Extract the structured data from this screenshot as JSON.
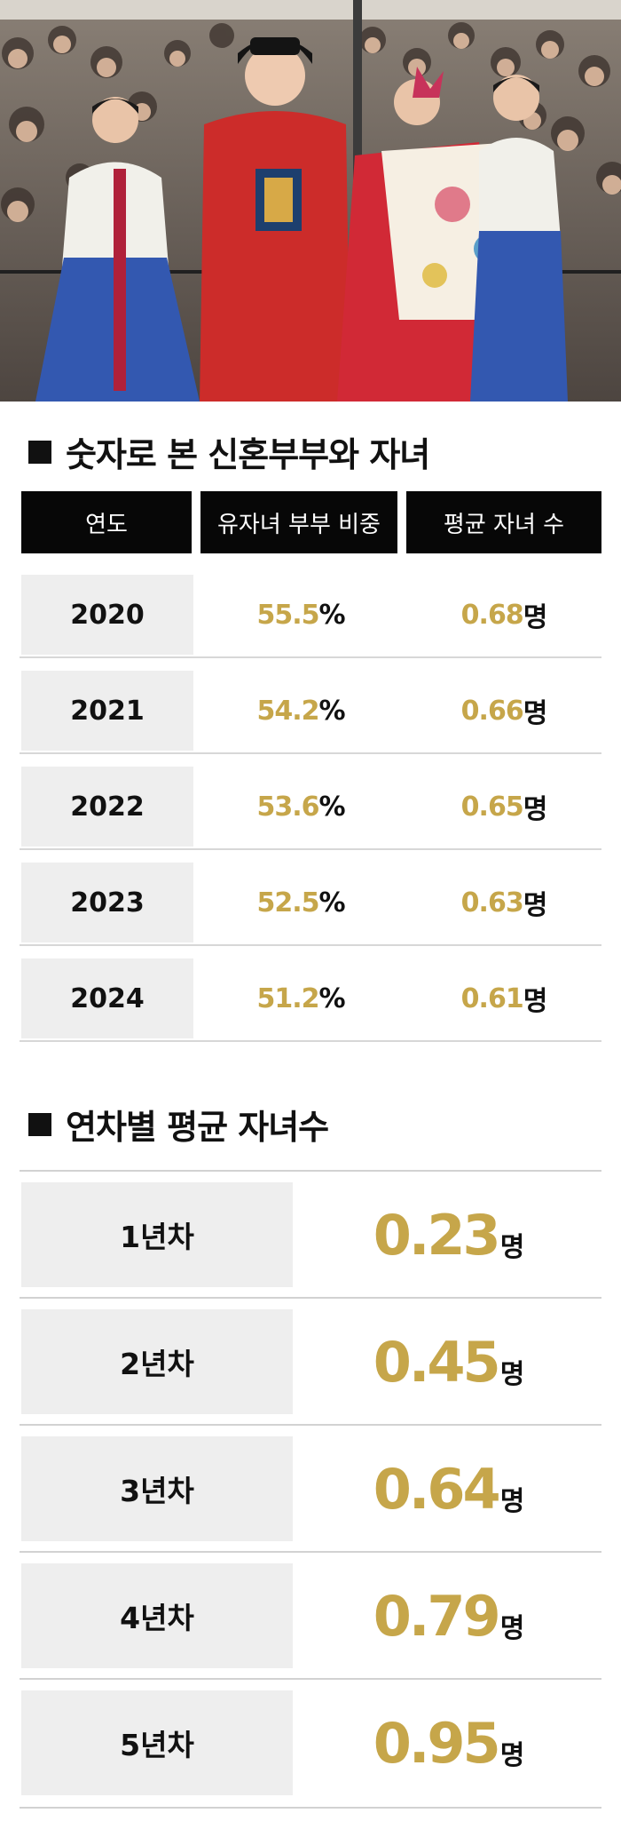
{
  "photo": {
    "alt": ""
  },
  "section1": {
    "title": "숫자로 본 신혼부부와 자녀",
    "headers": [
      "연도",
      "유자녀 부부 비중",
      "평균 자녀 수"
    ]
  },
  "section2": {
    "title": "연차별 평균 자녀수"
  },
  "colors": {
    "accent_gold": "#c6a64a",
    "header_bg": "#070707",
    "cell_bg": "#eeeeee"
  },
  "chart_data": [
    {
      "type": "table",
      "title": "숫자로 본 신혼부부와 자녀",
      "columns": [
        "연도",
        "유자녀 부부 비중",
        "평균 자녀 수"
      ],
      "rows": [
        {
          "year": "2020",
          "pct": "55.5",
          "pct_unit": "%",
          "kids": "0.68",
          "kids_unit": "명"
        },
        {
          "year": "2021",
          "pct": "54.2",
          "pct_unit": "%",
          "kids": "0.66",
          "kids_unit": "명"
        },
        {
          "year": "2022",
          "pct": "53.6",
          "pct_unit": "%",
          "kids": "0.65",
          "kids_unit": "명"
        },
        {
          "year": "2023",
          "pct": "52.5",
          "pct_unit": "%",
          "kids": "0.63",
          "kids_unit": "명"
        },
        {
          "year": "2024",
          "pct": "51.2",
          "pct_unit": "%",
          "kids": "0.61",
          "kids_unit": "명"
        }
      ]
    },
    {
      "type": "table",
      "title": "연차별 평균 자녀수",
      "rows": [
        {
          "label": "1년차",
          "value": "0.23",
          "unit": "명"
        },
        {
          "label": "2년차",
          "value": "0.45",
          "unit": "명"
        },
        {
          "label": "3년차",
          "value": "0.64",
          "unit": "명"
        },
        {
          "label": "4년차",
          "value": "0.79",
          "unit": "명"
        },
        {
          "label": "5년차",
          "value": "0.95",
          "unit": "명"
        }
      ]
    }
  ]
}
